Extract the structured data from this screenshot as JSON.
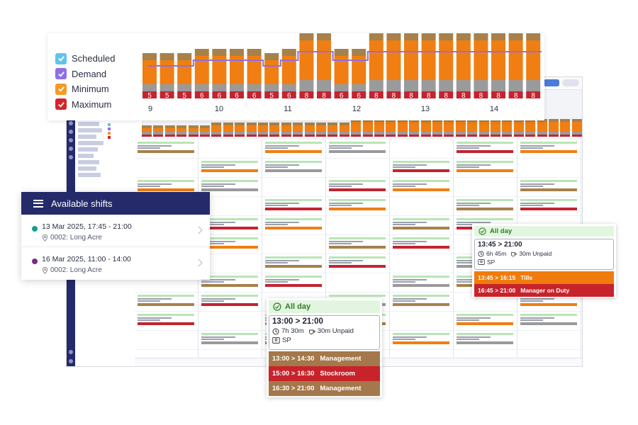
{
  "chart": {
    "legend": [
      {
        "label": "Scheduled",
        "color": "#60c3ec"
      },
      {
        "label": "Demand",
        "color": "#8e6ee8"
      },
      {
        "label": "Minimum",
        "color": "#f59a24"
      },
      {
        "label": "Maximum",
        "color": "#d4242a"
      }
    ],
    "day_labels": [
      "9",
      "10",
      "11",
      "12",
      "13",
      "14"
    ]
  },
  "chart_data": {
    "type": "bar",
    "values": [
      5,
      5,
      5,
      6,
      6,
      6,
      6,
      5,
      6,
      8,
      8,
      6,
      6,
      8,
      8,
      8,
      8,
      8,
      8,
      8,
      8,
      8,
      8
    ],
    "x_tick_labels": [
      "9",
      "10",
      "11",
      "12",
      "13",
      "14"
    ],
    "series_colors": {
      "scheduled": "#a6814a",
      "minimum": "#f07e12",
      "maximum": "#c22430",
      "gap": "#9a9a9a",
      "demand": "#8e6ee8"
    }
  },
  "available_shifts": {
    "title": "Available shifts",
    "items": [
      {
        "date": "13 Mar 2025, 17:45 - 21:00",
        "location": "0002: Long Acre",
        "dot_color": "#13a08c"
      },
      {
        "date": "16 Mar 2025, 11:00 - 14:00",
        "location": "0002: Long Acre",
        "dot_color": "#7a2e83"
      }
    ]
  },
  "popup_right": {
    "allday": "All day",
    "time": "13:45 > 21:00",
    "duration": "6h 45m",
    "break": "30m Unpaid",
    "role": "SP",
    "tasks": [
      {
        "label": "13:45 > 16:15",
        "name": "Tills",
        "color": "#ef7c0c"
      },
      {
        "label": "16:45 > 21:00",
        "name": "Manager on Duty",
        "color": "#c8232b"
      }
    ]
  },
  "popup_bottom": {
    "allday": "All day",
    "time": "13:00 > 21:00",
    "duration": "7h 30m",
    "break": "30m Unpaid",
    "role": "SP",
    "tasks": [
      {
        "label": "13:00 > 14:30",
        "name": "Management",
        "color": "#a4784a"
      },
      {
        "label": "15:00 > 16:30",
        "name": "Stockroom",
        "color": "#c8232b"
      },
      {
        "label": "16:30 > 21:00",
        "name": "Management",
        "color": "#a4784a"
      }
    ]
  }
}
